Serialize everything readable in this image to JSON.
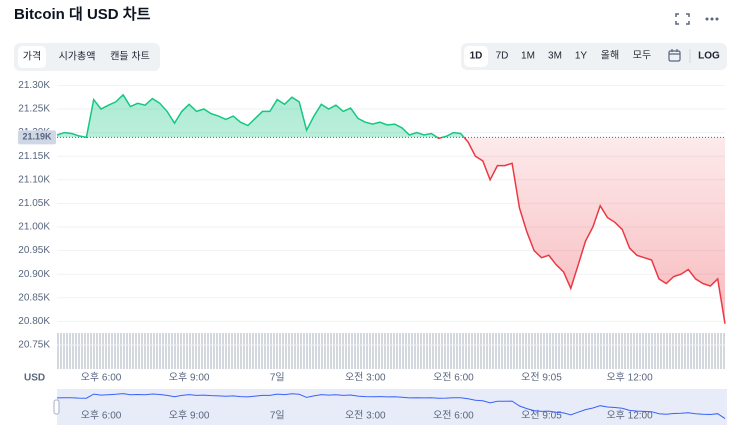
{
  "chart_data": {
    "type": "line",
    "title": "Bitcoin 대 USD 차트",
    "tabs": [
      "가격",
      "시가총액",
      "캔들 차트"
    ],
    "active_tab": 0,
    "ranges": [
      "1D",
      "7D",
      "1M",
      "3M",
      "1Y",
      "올해",
      "모두"
    ],
    "active_range": 0,
    "scale_button": "LOG",
    "currency_label": "USD",
    "baseline": 21190,
    "baseline_label": "21.19K",
    "up_color": "#16c784",
    "down_color": "#ea3943",
    "grid": true,
    "ylim": [
      20730,
      21310
    ],
    "yticks": [
      {
        "value": 20750,
        "label": "20.75K"
      },
      {
        "value": 20800,
        "label": "20.80K"
      },
      {
        "value": 20850,
        "label": "20.85K"
      },
      {
        "value": 20900,
        "label": "20.90K"
      },
      {
        "value": 20950,
        "label": "20.95K"
      },
      {
        "value": 21000,
        "label": "21.00K"
      },
      {
        "value": 21050,
        "label": "21.05K"
      },
      {
        "value": 21100,
        "label": "21.10K"
      },
      {
        "value": 21150,
        "label": "21.15K"
      },
      {
        "value": 21200,
        "label": "21.20K"
      },
      {
        "value": 21250,
        "label": "21.25K"
      },
      {
        "value": 21300,
        "label": "21.30K"
      }
    ],
    "categories": [
      null,
      null,
      null,
      null,
      null,
      null,
      "오후 6:00",
      null,
      null,
      null,
      null,
      null,
      null,
      null,
      null,
      null,
      null,
      null,
      "오후 9:00",
      null,
      null,
      null,
      null,
      null,
      null,
      null,
      null,
      null,
      null,
      null,
      "7일",
      null,
      null,
      null,
      null,
      null,
      null,
      null,
      null,
      null,
      null,
      null,
      "오전 3:00",
      null,
      null,
      null,
      null,
      null,
      null,
      null,
      null,
      null,
      null,
      null,
      "오전 6:00",
      null,
      null,
      null,
      null,
      null,
      null,
      null,
      null,
      null,
      null,
      null,
      "오전 9:05",
      null,
      null,
      null,
      null,
      null,
      null,
      null,
      null,
      null,
      null,
      null,
      "오후 12:00",
      null,
      null,
      null,
      null,
      null,
      null,
      null,
      null,
      null,
      null,
      null,
      null,
      null
    ],
    "series": [
      {
        "name": "Bitcoin",
        "values": [
          21195,
          21200,
          21198,
          21193,
          21190,
          21270,
          21250,
          21258,
          21265,
          21280,
          21255,
          21262,
          21258,
          21272,
          21262,
          21245,
          21220,
          21245,
          21260,
          21245,
          21250,
          21240,
          21235,
          21228,
          21235,
          21222,
          21215,
          21230,
          21245,
          21245,
          21270,
          21260,
          21275,
          21265,
          21205,
          21235,
          21260,
          21250,
          21258,
          21245,
          21252,
          21230,
          21222,
          21218,
          21222,
          21216,
          21218,
          21210,
          21195,
          21200,
          21195,
          21198,
          21188,
          21192,
          21200,
          21198,
          21180,
          21150,
          21140,
          21100,
          21130,
          21130,
          21135,
          21040,
          20990,
          20950,
          20935,
          20940,
          20920,
          20905,
          20870,
          20920,
          20970,
          21000,
          21045,
          21020,
          21010,
          20995,
          20955,
          20940,
          20935,
          20930,
          20890,
          20880,
          20895,
          20900,
          20910,
          20890,
          20880,
          20875,
          20890,
          20795
        ]
      }
    ]
  }
}
